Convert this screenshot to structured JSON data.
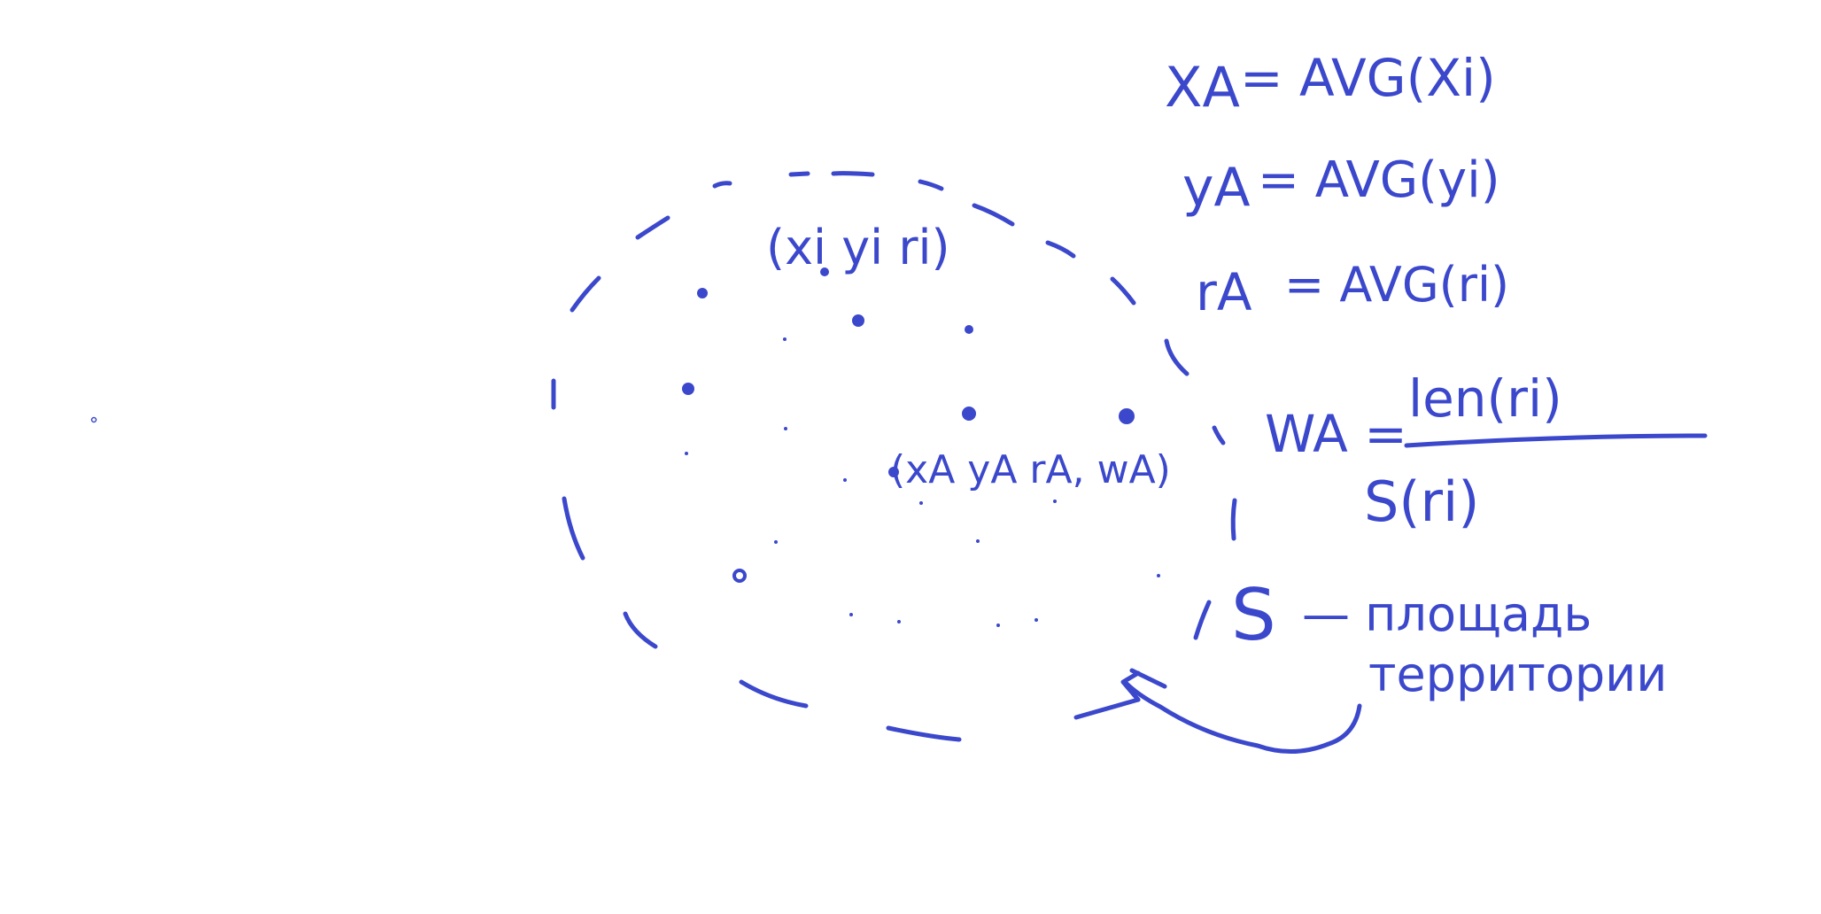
{
  "colors": {
    "ink": "#3b48cc",
    "background": "#ffffff"
  },
  "labels": {
    "tuple_i": "(xi yi ri)",
    "tuple_a": "(xA yA rA, wA)",
    "xa_lhs": "XA",
    "xa_rhs": "= AVG(Xi)",
    "ya_lhs": "yA",
    "ya_rhs": "= AVG(yi)",
    "ra_lhs": "rA",
    "ra_rhs": "= AVG(ri)",
    "wa_lhs": "WA =",
    "wa_numerator": "len(ri)",
    "wa_denominator": "S(ri)",
    "s_symbol": "S",
    "s_def_line1": "— площадь",
    "s_def_line2": "территории"
  },
  "points_count": 22
}
